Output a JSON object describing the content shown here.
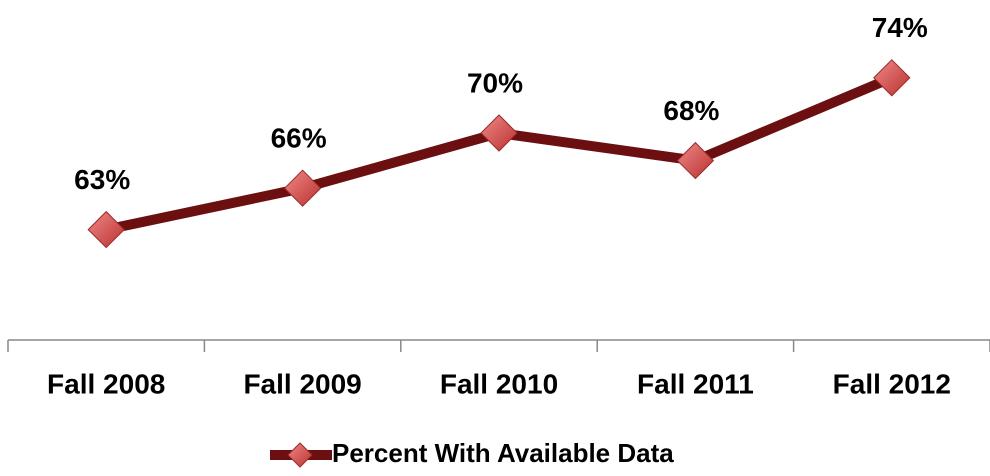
{
  "chart_data": {
    "type": "line",
    "categories": [
      "Fall 2008",
      "Fall 2009",
      "Fall 2010",
      "Fall 2011",
      "Fall 2012"
    ],
    "series": [
      {
        "name": "Percent With Available Data",
        "color": "#6b0f10",
        "marker_color": "#d9504f",
        "values": [
          63,
          66,
          70,
          68,
          74
        ],
        "value_labels": [
          "63%",
          "66%",
          "70%",
          "68%",
          "74%"
        ]
      }
    ],
    "ylim": [
      55,
      80
    ],
    "grid": false,
    "legend": "bottom"
  }
}
